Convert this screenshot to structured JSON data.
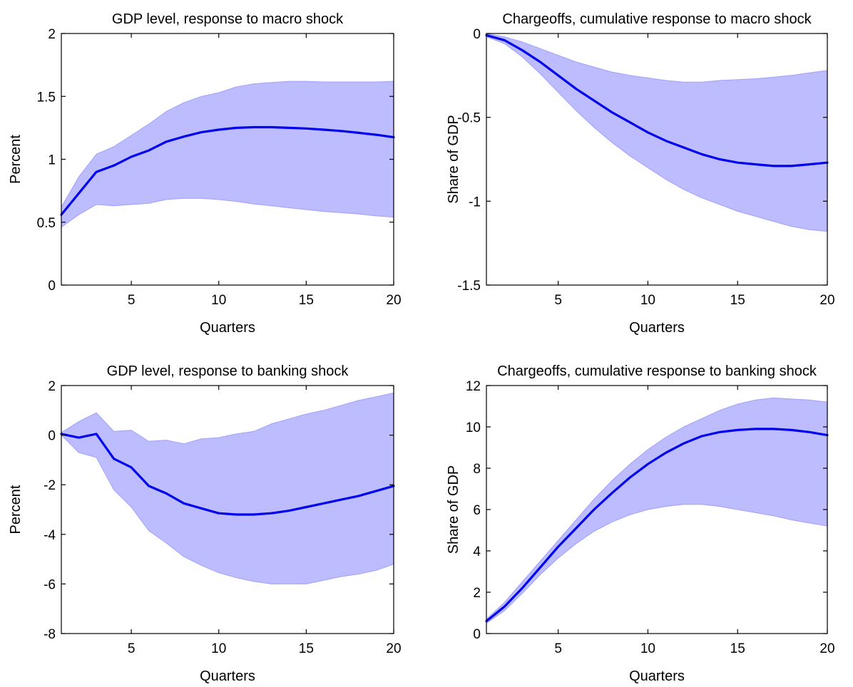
{
  "chart_data": [
    {
      "type": "area",
      "title": "GDP level, response to macro shock",
      "xlabel": "Quarters",
      "ylabel": "Percent",
      "xlim": [
        1,
        20
      ],
      "ylim": [
        0,
        2
      ],
      "xticks": [
        5,
        10,
        15,
        20
      ],
      "yticks": [
        0,
        0.5,
        1,
        1.5,
        2
      ],
      "xtick_labels": [
        "5",
        "10",
        "15",
        "20"
      ],
      "ytick_labels": [
        "0",
        "0.5",
        "1",
        "1.5",
        "2"
      ],
      "grid": false,
      "x": [
        1,
        2,
        3,
        4,
        5,
        6,
        7,
        8,
        9,
        10,
        11,
        12,
        13,
        14,
        15,
        16,
        17,
        18,
        19,
        20
      ],
      "series": [
        {
          "role": "median",
          "values": [
            0.56,
            0.73,
            0.9,
            0.95,
            1.02,
            1.07,
            1.14,
            1.18,
            1.215,
            1.235,
            1.25,
            1.255,
            1.255,
            1.25,
            1.245,
            1.235,
            1.225,
            1.21,
            1.195,
            1.175
          ]
        },
        {
          "role": "upper",
          "values": [
            0.62,
            0.86,
            1.04,
            1.1,
            1.19,
            1.28,
            1.38,
            1.45,
            1.5,
            1.53,
            1.575,
            1.6,
            1.61,
            1.62,
            1.62,
            1.615,
            1.615,
            1.615,
            1.615,
            1.62
          ]
        },
        {
          "role": "lower",
          "values": [
            0.46,
            0.56,
            0.64,
            0.63,
            0.64,
            0.65,
            0.68,
            0.69,
            0.69,
            0.68,
            0.665,
            0.645,
            0.63,
            0.615,
            0.6,
            0.585,
            0.575,
            0.565,
            0.55,
            0.54
          ]
        }
      ]
    },
    {
      "type": "area",
      "title": "Chargeoffs, cumulative response to macro shock",
      "xlabel": "Quarters",
      "ylabel": "Share of GDP",
      "xlim": [
        1,
        20
      ],
      "ylim": [
        -1.5,
        0
      ],
      "xticks": [
        5,
        10,
        15,
        20
      ],
      "yticks": [
        0,
        -0.5,
        -1,
        -1.5
      ],
      "xtick_labels": [
        "5",
        "10",
        "15",
        "20"
      ],
      "ytick_labels": [
        "0",
        "-0.5",
        "-1",
        "-1.5"
      ],
      "grid": false,
      "x": [
        1,
        2,
        3,
        4,
        5,
        6,
        7,
        8,
        9,
        10,
        11,
        12,
        13,
        14,
        15,
        16,
        17,
        18,
        19,
        20
      ],
      "series": [
        {
          "role": "median",
          "values": [
            -0.01,
            -0.04,
            -0.1,
            -0.17,
            -0.25,
            -0.33,
            -0.4,
            -0.47,
            -0.53,
            -0.59,
            -0.64,
            -0.68,
            -0.72,
            -0.75,
            -0.77,
            -0.78,
            -0.79,
            -0.79,
            -0.78,
            -0.77
          ]
        },
        {
          "role": "upper",
          "values": [
            0.0,
            -0.02,
            -0.05,
            -0.09,
            -0.13,
            -0.17,
            -0.2,
            -0.23,
            -0.25,
            -0.265,
            -0.28,
            -0.29,
            -0.29,
            -0.28,
            -0.275,
            -0.27,
            -0.26,
            -0.25,
            -0.235,
            -0.22
          ]
        },
        {
          "role": "lower",
          "values": [
            -0.02,
            -0.06,
            -0.14,
            -0.24,
            -0.35,
            -0.46,
            -0.56,
            -0.65,
            -0.73,
            -0.8,
            -0.87,
            -0.93,
            -0.98,
            -1.02,
            -1.06,
            -1.09,
            -1.12,
            -1.15,
            -1.17,
            -1.18
          ]
        }
      ]
    },
    {
      "type": "area",
      "title": "GDP level, response to banking shock",
      "xlabel": "Quarters",
      "ylabel": "Percent",
      "xlim": [
        1,
        20
      ],
      "ylim": [
        -8,
        2
      ],
      "xticks": [
        5,
        10,
        15,
        20
      ],
      "yticks": [
        -8,
        -6,
        -4,
        -2,
        0,
        2
      ],
      "xtick_labels": [
        "5",
        "10",
        "15",
        "20"
      ],
      "ytick_labels": [
        "-8",
        "-6",
        "-4",
        "-2",
        "0",
        "2"
      ],
      "grid": false,
      "x": [
        1,
        2,
        3,
        4,
        5,
        6,
        7,
        8,
        9,
        10,
        11,
        12,
        13,
        14,
        15,
        16,
        17,
        18,
        19,
        20
      ],
      "series": [
        {
          "role": "median",
          "values": [
            0.05,
            -0.1,
            0.05,
            -0.95,
            -1.3,
            -2.05,
            -2.35,
            -2.75,
            -2.95,
            -3.15,
            -3.2,
            -3.2,
            -3.15,
            -3.05,
            -2.9,
            -2.75,
            -2.6,
            -2.45,
            -2.25,
            -2.05
          ]
        },
        {
          "role": "upper",
          "values": [
            0.1,
            0.55,
            0.9,
            0.15,
            0.2,
            -0.25,
            -0.2,
            -0.35,
            -0.15,
            -0.1,
            0.05,
            0.15,
            0.45,
            0.65,
            0.85,
            1.0,
            1.2,
            1.4,
            1.55,
            1.7
          ]
        },
        {
          "role": "lower",
          "values": [
            0.0,
            -0.7,
            -0.9,
            -2.2,
            -2.9,
            -3.85,
            -4.35,
            -4.9,
            -5.25,
            -5.55,
            -5.75,
            -5.9,
            -6.0,
            -6.0,
            -6.0,
            -5.85,
            -5.7,
            -5.6,
            -5.45,
            -5.2
          ]
        }
      ]
    },
    {
      "type": "area",
      "title": "Chargeoffs, cumulative response to banking shock",
      "xlabel": "Quarters",
      "ylabel": "Share of GDP",
      "xlim": [
        1,
        20
      ],
      "ylim": [
        0,
        12
      ],
      "xticks": [
        5,
        10,
        15,
        20
      ],
      "yticks": [
        0,
        2,
        4,
        6,
        8,
        10,
        12
      ],
      "xtick_labels": [
        "5",
        "10",
        "15",
        "20"
      ],
      "ytick_labels": [
        "0",
        "2",
        "4",
        "6",
        "8",
        "10",
        "12"
      ],
      "grid": false,
      "x": [
        1,
        2,
        3,
        4,
        5,
        6,
        7,
        8,
        9,
        10,
        11,
        12,
        13,
        14,
        15,
        16,
        17,
        18,
        19,
        20
      ],
      "series": [
        {
          "role": "median",
          "values": [
            0.6,
            1.3,
            2.2,
            3.2,
            4.2,
            5.1,
            6.0,
            6.8,
            7.55,
            8.2,
            8.75,
            9.2,
            9.55,
            9.75,
            9.85,
            9.9,
            9.9,
            9.85,
            9.75,
            9.6
          ]
        },
        {
          "role": "upper",
          "values": [
            0.7,
            1.5,
            2.5,
            3.5,
            4.5,
            5.5,
            6.5,
            7.4,
            8.2,
            8.9,
            9.5,
            10.0,
            10.4,
            10.8,
            11.1,
            11.3,
            11.4,
            11.35,
            11.3,
            11.2
          ]
        },
        {
          "role": "lower",
          "values": [
            0.5,
            1.1,
            1.95,
            2.85,
            3.65,
            4.35,
            4.95,
            5.4,
            5.75,
            6.0,
            6.15,
            6.25,
            6.25,
            6.15,
            6.0,
            5.85,
            5.7,
            5.5,
            5.35,
            5.2
          ]
        }
      ]
    }
  ],
  "colors": {
    "band_fill": "#bcbcff",
    "band_edge": "#a0a0ff",
    "median_line": "#0000ee",
    "axis": "#000000"
  }
}
